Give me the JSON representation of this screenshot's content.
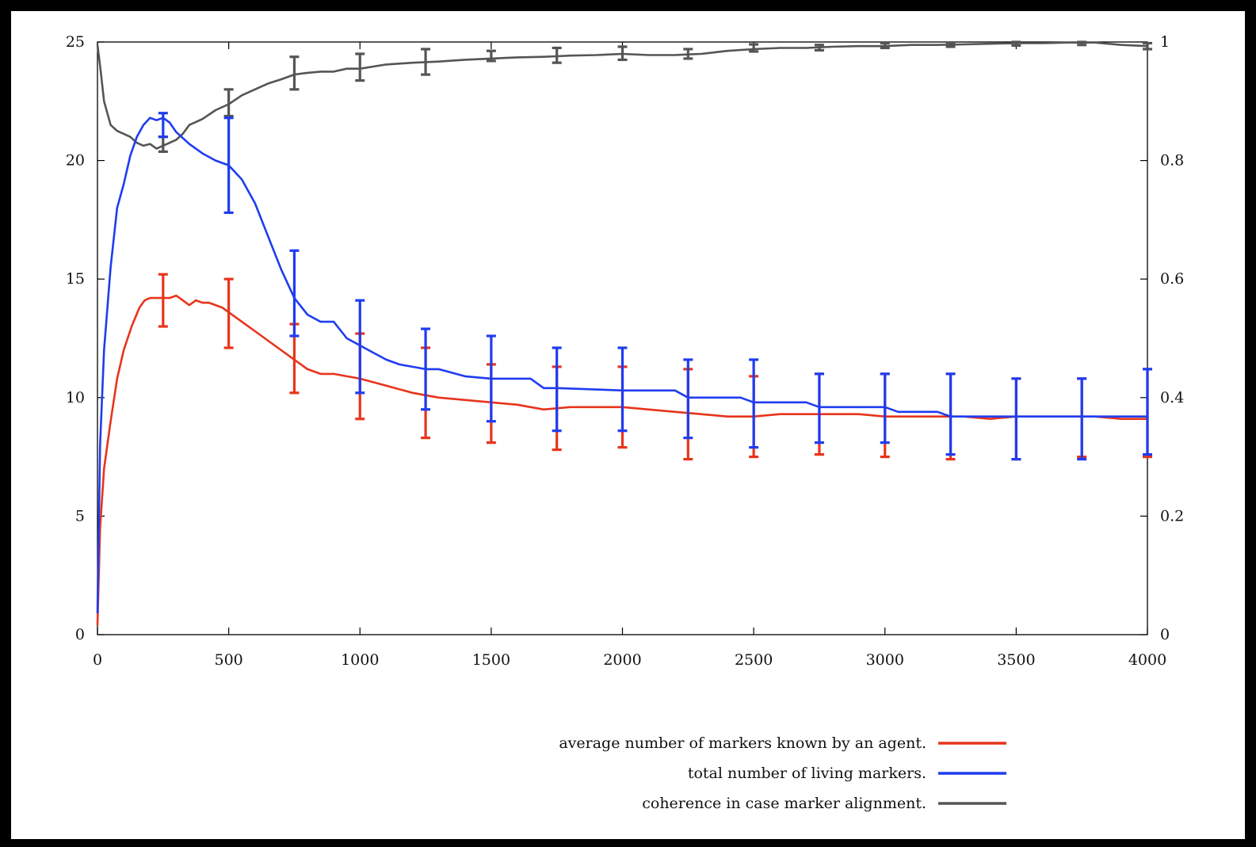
{
  "chart_data": {
    "type": "line",
    "title": "",
    "xlabel": "",
    "ylabel": "",
    "y2label": "",
    "xlim": [
      0,
      4000
    ],
    "ylim": [
      0,
      25
    ],
    "y2lim": [
      0,
      1
    ],
    "xticks": [
      "0",
      "500",
      "1000",
      "1500",
      "2000",
      "2500",
      "3000",
      "3500",
      "4000"
    ],
    "yticks": [
      "0",
      "5",
      "10",
      "15",
      "20",
      "25"
    ],
    "y2ticks": [
      "0",
      "0.2",
      "0.4",
      "0.6",
      "0.8",
      "1"
    ],
    "grid": false,
    "legend_position": "bottom-right",
    "series": [
      {
        "name": "average number of markers known by an agent.",
        "axis": "left",
        "color": "#e8341c",
        "x": [
          0,
          10,
          25,
          50,
          75,
          100,
          130,
          160,
          180,
          200,
          225,
          250,
          275,
          300,
          325,
          350,
          375,
          400,
          425,
          450,
          475,
          500,
          550,
          600,
          650,
          700,
          750,
          800,
          850,
          900,
          950,
          1000,
          1100,
          1200,
          1300,
          1400,
          1500,
          1600,
          1700,
          1800,
          1900,
          2000,
          2100,
          2200,
          2300,
          2400,
          2500,
          2600,
          2700,
          2800,
          2900,
          3000,
          3100,
          3200,
          3300,
          3400,
          3500,
          3600,
          3700,
          3800,
          3900,
          4000
        ],
        "y": [
          0.4,
          4.5,
          7.0,
          9.0,
          10.8,
          12.0,
          13.0,
          13.8,
          14.1,
          14.2,
          14.2,
          14.2,
          14.2,
          14.3,
          14.1,
          13.9,
          14.1,
          14.0,
          14.0,
          13.9,
          13.8,
          13.6,
          13.2,
          12.8,
          12.4,
          12.0,
          11.6,
          11.2,
          11.0,
          11.0,
          10.9,
          10.8,
          10.5,
          10.2,
          10.0,
          9.9,
          9.8,
          9.7,
          9.5,
          9.6,
          9.6,
          9.6,
          9.5,
          9.4,
          9.3,
          9.2,
          9.2,
          9.3,
          9.3,
          9.3,
          9.3,
          9.2,
          9.2,
          9.2,
          9.2,
          9.1,
          9.2,
          9.2,
          9.2,
          9.2,
          9.1,
          9.1
        ],
        "error_bars": [
          {
            "x": 250,
            "low": 13.0,
            "high": 15.2
          },
          {
            "x": 500,
            "low": 12.1,
            "high": 15.0
          },
          {
            "x": 750,
            "low": 10.2,
            "high": 13.1
          },
          {
            "x": 1000,
            "low": 9.1,
            "high": 12.7
          },
          {
            "x": 1250,
            "low": 8.3,
            "high": 12.1
          },
          {
            "x": 1500,
            "low": 8.1,
            "high": 11.4
          },
          {
            "x": 1750,
            "low": 7.8,
            "high": 11.3
          },
          {
            "x": 2000,
            "low": 7.9,
            "high": 11.3
          },
          {
            "x": 2250,
            "low": 7.4,
            "high": 11.2
          },
          {
            "x": 2500,
            "low": 7.5,
            "high": 10.9
          },
          {
            "x": 2750,
            "low": 7.6,
            "high": 11.0
          },
          {
            "x": 3000,
            "low": 7.5,
            "high": 11.0
          },
          {
            "x": 3250,
            "low": 7.4,
            "high": 11.0
          },
          {
            "x": 3500,
            "low": 7.4,
            "high": 10.8
          },
          {
            "x": 3750,
            "low": 7.5,
            "high": 10.8
          },
          {
            "x": 4000,
            "low": 7.5,
            "high": 11.2
          }
        ]
      },
      {
        "name": "total number of living markers.",
        "axis": "left",
        "color": "#1f3cf0",
        "x": [
          0,
          10,
          25,
          50,
          75,
          100,
          125,
          150,
          175,
          200,
          225,
          250,
          275,
          300,
          350,
          400,
          450,
          500,
          550,
          600,
          650,
          700,
          750,
          800,
          850,
          900,
          950,
          1000,
          1050,
          1100,
          1150,
          1200,
          1250,
          1300,
          1400,
          1500,
          1650,
          1700,
          1750,
          2000,
          2200,
          2250,
          2450,
          2500,
          2700,
          2750,
          3000,
          3050,
          3200,
          3250,
          3500,
          3700,
          4000
        ],
        "y": [
          0.9,
          8.0,
          12.0,
          15.5,
          18.0,
          19.0,
          20.2,
          21.0,
          21.5,
          21.8,
          21.7,
          21.8,
          21.6,
          21.2,
          20.7,
          20.3,
          20.0,
          19.8,
          19.2,
          18.2,
          16.8,
          15.4,
          14.2,
          13.5,
          13.2,
          13.2,
          12.5,
          12.2,
          11.9,
          11.6,
          11.4,
          11.3,
          11.2,
          11.2,
          10.9,
          10.8,
          10.8,
          10.4,
          10.4,
          10.3,
          10.3,
          10.0,
          10.0,
          9.8,
          9.8,
          9.6,
          9.6,
          9.4,
          9.4,
          9.2,
          9.2,
          9.2,
          9.2
        ],
        "error_bars": [
          {
            "x": 250,
            "low": 21.0,
            "high": 22.0
          },
          {
            "x": 500,
            "low": 17.8,
            "high": 21.8
          },
          {
            "x": 750,
            "low": 12.6,
            "high": 16.2
          },
          {
            "x": 1000,
            "low": 10.2,
            "high": 14.1
          },
          {
            "x": 1250,
            "low": 9.5,
            "high": 12.9
          },
          {
            "x": 1500,
            "low": 9.0,
            "high": 12.6
          },
          {
            "x": 1750,
            "low": 8.6,
            "high": 12.1
          },
          {
            "x": 2000,
            "low": 8.6,
            "high": 12.1
          },
          {
            "x": 2250,
            "low": 8.3,
            "high": 11.6
          },
          {
            "x": 2500,
            "low": 7.9,
            "high": 11.6
          },
          {
            "x": 2750,
            "low": 8.1,
            "high": 11.0
          },
          {
            "x": 3000,
            "low": 8.1,
            "high": 11.0
          },
          {
            "x": 3250,
            "low": 7.6,
            "high": 11.0
          },
          {
            "x": 3500,
            "low": 7.4,
            "high": 10.8
          },
          {
            "x": 3750,
            "low": 7.4,
            "high": 10.8
          },
          {
            "x": 4000,
            "low": 7.6,
            "high": 11.2
          }
        ]
      },
      {
        "name": "coherence in case marker alignment.",
        "axis": "right",
        "color": "#555555",
        "x": [
          0,
          10,
          25,
          50,
          75,
          100,
          125,
          150,
          175,
          200,
          225,
          250,
          275,
          300,
          325,
          350,
          400,
          450,
          500,
          550,
          600,
          650,
          700,
          750,
          800,
          850,
          900,
          950,
          1000,
          1100,
          1200,
          1300,
          1400,
          1500,
          1600,
          1700,
          1750,
          1800,
          1900,
          2000,
          2100,
          2200,
          2250,
          2300,
          2400,
          2500,
          2600,
          2700,
          2800,
          2900,
          3000,
          3100,
          3200,
          3300,
          3400,
          3500,
          3600,
          3700,
          3800,
          3900,
          4000
        ],
        "y": [
          0.995,
          0.96,
          0.9,
          0.86,
          0.85,
          0.845,
          0.84,
          0.83,
          0.825,
          0.828,
          0.82,
          0.825,
          0.83,
          0.835,
          0.845,
          0.86,
          0.87,
          0.885,
          0.895,
          0.91,
          0.92,
          0.93,
          0.937,
          0.945,
          0.948,
          0.95,
          0.95,
          0.955,
          0.955,
          0.962,
          0.965,
          0.967,
          0.97,
          0.972,
          0.974,
          0.975,
          0.976,
          0.977,
          0.978,
          0.98,
          0.978,
          0.978,
          0.979,
          0.98,
          0.985,
          0.988,
          0.99,
          0.99,
          0.992,
          0.993,
          0.993,
          0.995,
          0.995,
          0.996,
          0.997,
          0.998,
          0.998,
          0.999,
          0.999,
          0.995,
          0.993
        ],
        "error_bars": [
          {
            "x": 250,
            "low": 0.815,
            "high": 0.84
          },
          {
            "x": 500,
            "low": 0.875,
            "high": 0.92
          },
          {
            "x": 750,
            "low": 0.92,
            "high": 0.975
          },
          {
            "x": 1000,
            "low": 0.935,
            "high": 0.98
          },
          {
            "x": 1250,
            "low": 0.945,
            "high": 0.988
          },
          {
            "x": 1500,
            "low": 0.968,
            "high": 0.985
          },
          {
            "x": 1750,
            "low": 0.965,
            "high": 0.99
          },
          {
            "x": 2000,
            "low": 0.97,
            "high": 0.992
          },
          {
            "x": 2250,
            "low": 0.972,
            "high": 0.988
          },
          {
            "x": 2500,
            "low": 0.984,
            "high": 0.996
          },
          {
            "x": 2750,
            "low": 0.986,
            "high": 0.995
          },
          {
            "x": 3000,
            "low": 0.99,
            "high": 0.998
          },
          {
            "x": 3250,
            "low": 0.992,
            "high": 0.999
          },
          {
            "x": 3500,
            "low": 0.994,
            "high": 1.0
          },
          {
            "x": 3750,
            "low": 0.995,
            "high": 1.0
          },
          {
            "x": 4000,
            "low": 0.988,
            "high": 0.998
          }
        ]
      }
    ]
  }
}
